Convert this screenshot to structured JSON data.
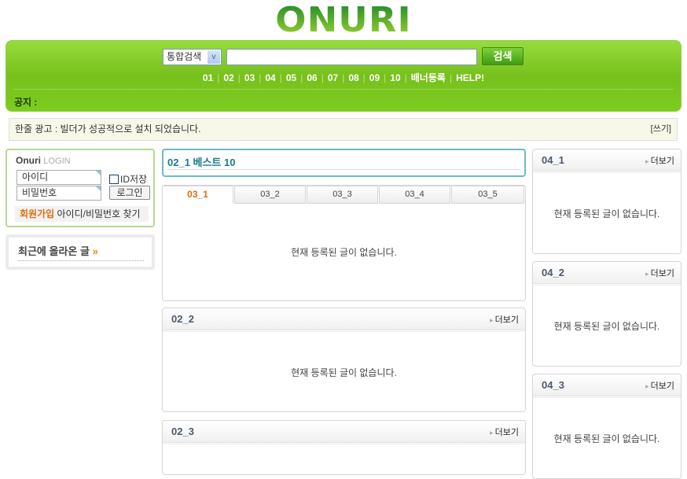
{
  "logo": "ONURI",
  "search": {
    "select": "통합검색",
    "button": "검색",
    "value": ""
  },
  "nav": [
    "01",
    "02",
    "03",
    "04",
    "05",
    "06",
    "07",
    "08",
    "09",
    "10",
    "배너등록",
    "HELP!"
  ],
  "notice": "공지 :",
  "ad": {
    "text": "한줄 광고 : 빌더가 성공적으로 설치 되었습니다.",
    "write": "[쓰기]"
  },
  "login": {
    "brand": "Onuri",
    "label": "LOGIN",
    "id_placeholder": "아이디",
    "pw_placeholder": "비밀번호",
    "save_id": "ID저장",
    "login_button": "로그인",
    "join": "회원가입",
    "find": "아이디/비밀번호 찾기"
  },
  "recent": {
    "title": "최근에 올라온 글",
    "arrow": "»"
  },
  "best": {
    "title": "02_1 베스트 10"
  },
  "tabs": {
    "items": [
      "03_1",
      "03_2",
      "03_3",
      "03_4",
      "03_5"
    ],
    "active": "03_1"
  },
  "empty": "현재 등록된 글이 없습니다.",
  "more": "더보기",
  "boards": {
    "b22": "02_2",
    "b23": "02_3",
    "b41": "04_1",
    "b42": "04_2",
    "b43": "04_3"
  }
}
